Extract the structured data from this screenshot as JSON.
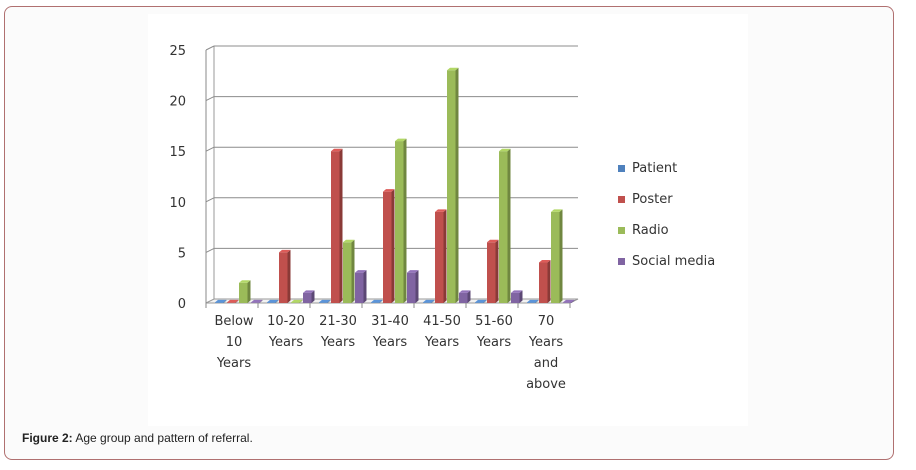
{
  "caption": {
    "label": "Figure 2:",
    "text": " Age group and pattern of referral."
  },
  "chart_data": {
    "type": "bar",
    "categories": [
      [
        "Below",
        "10",
        "Years"
      ],
      [
        "10-20",
        "Years"
      ],
      [
        "21-30",
        "Years"
      ],
      [
        "31-40",
        "Years"
      ],
      [
        "41-50",
        "Years"
      ],
      [
        "51-60",
        "Years"
      ],
      [
        "70",
        "Years",
        "and",
        "above"
      ]
    ],
    "series": [
      {
        "name": "Patient",
        "color": "#4f81bd",
        "values": [
          0,
          0,
          0,
          0,
          0,
          0,
          0
        ]
      },
      {
        "name": "Poster",
        "color": "#c0504d",
        "values": [
          0,
          5,
          15,
          11,
          9,
          6,
          4
        ]
      },
      {
        "name": "Radio",
        "color": "#9bbb59",
        "values": [
          2,
          0,
          6,
          16,
          23,
          15,
          9
        ]
      },
      {
        "name": "Social media",
        "color": "#8064a2",
        "values": [
          0,
          1,
          3,
          3,
          1,
          1,
          0
        ]
      }
    ],
    "yticks": [
      "0",
      "5",
      "10",
      "15",
      "20",
      "25"
    ],
    "ylim": [
      0,
      25
    ],
    "grid": true,
    "legend_position": "right",
    "title": "",
    "xlabel": "",
    "ylabel": ""
  }
}
